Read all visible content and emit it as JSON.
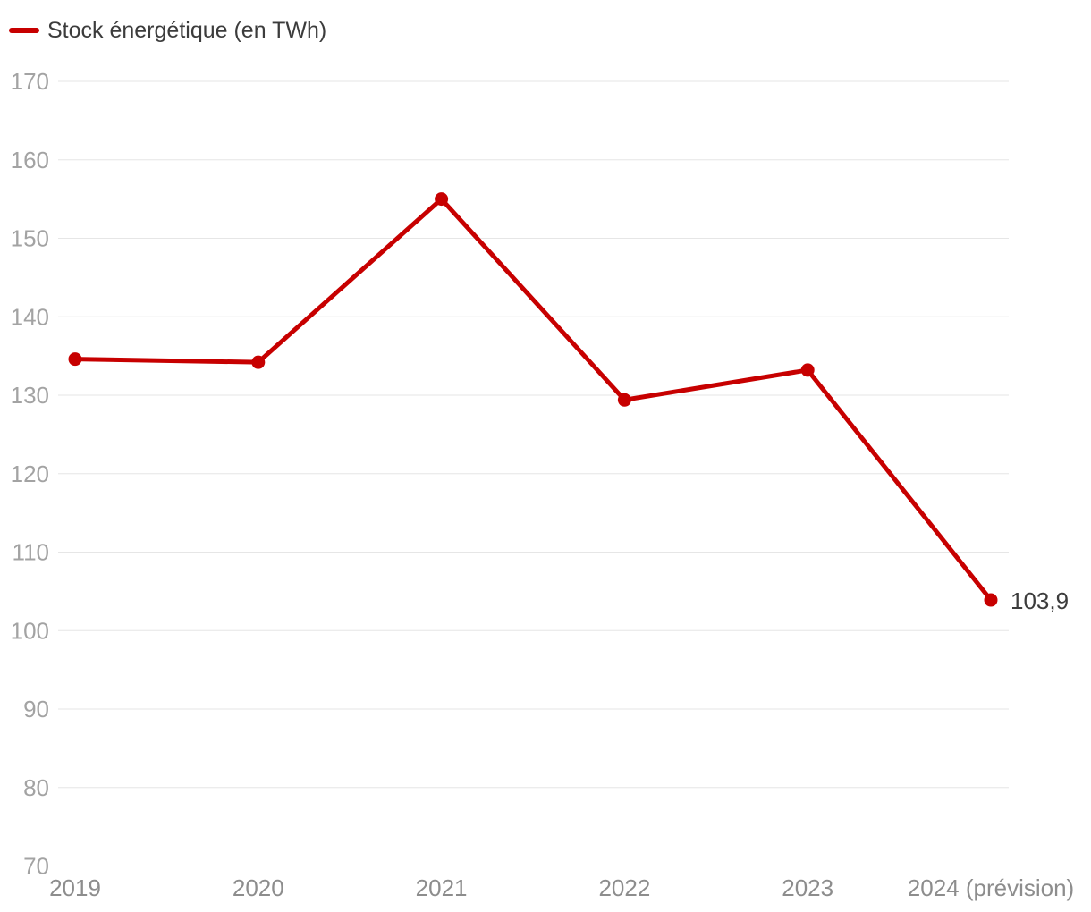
{
  "legend": {
    "label": "Stock énergétique (en TWh)"
  },
  "chart_data": {
    "type": "line",
    "title": "",
    "categories": [
      "2019",
      "2020",
      "2021",
      "2022",
      "2023",
      "2024 (prévision)"
    ],
    "series": [
      {
        "name": "Stock énergétique (en TWh)",
        "color": "#c70000",
        "values": [
          134.6,
          134.2,
          155.0,
          129.4,
          133.2,
          103.9
        ]
      }
    ],
    "ylim": [
      70,
      170
    ],
    "y_ticks": [
      170,
      160,
      150,
      140,
      130,
      120,
      110,
      100,
      90,
      80,
      70
    ],
    "grid": true,
    "legend_position": "top-left",
    "last_point_label": "103,9",
    "colors": {
      "series": "#c70000",
      "gridline": "#e6e6e6",
      "y_tick_label": "#a3a3a3",
      "x_tick_label": "#8d8d8d",
      "value_label": "#3c3c3c"
    }
  }
}
